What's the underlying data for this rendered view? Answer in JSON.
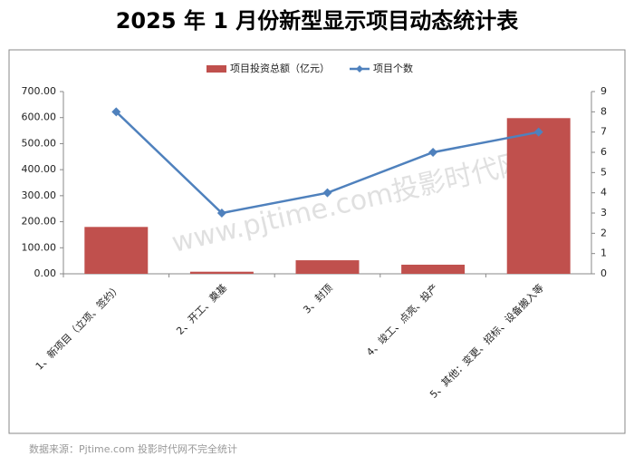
{
  "chart_data": {
    "type": "bar-line",
    "title": "2025 年 1 月份新型显示项目动态统计表",
    "categories": [
      "1、新项目（立项、签约）",
      "2、开工、奠基",
      "3、封顶",
      "4、竣工、点亮、投产",
      "5、其他：变更、招标、设备搬入等"
    ],
    "series": [
      {
        "name": "项目投资总额（亿元）",
        "type": "bar",
        "color": "#c0504d",
        "values": [
          180,
          8,
          52,
          35,
          598
        ]
      },
      {
        "name": "项目个数",
        "type": "line",
        "color": "#4f81bd",
        "axis": "y2",
        "values": [
          8,
          3,
          4,
          6,
          7
        ]
      }
    ],
    "ylim": [
      0,
      700
    ],
    "yticks": [
      {
        "value": 0,
        "label": "0.00"
      },
      {
        "value": 100,
        "label": "100.00"
      },
      {
        "value": 200,
        "label": "200.00"
      },
      {
        "value": 300,
        "label": "300.00"
      },
      {
        "value": 400,
        "label": "400.00"
      },
      {
        "value": 500,
        "label": "500.00"
      },
      {
        "value": 600,
        "label": "600.00"
      },
      {
        "value": 700,
        "label": "700.00"
      }
    ],
    "y2lim": [
      0,
      9
    ],
    "y2ticks": [
      0,
      1,
      2,
      3,
      4,
      5,
      6,
      7,
      8,
      9
    ],
    "legend": "top",
    "watermark": "www.pjtime.com投影时代网",
    "source": "数据来源：Pjtime.com 投影时代网不完全统计"
  }
}
